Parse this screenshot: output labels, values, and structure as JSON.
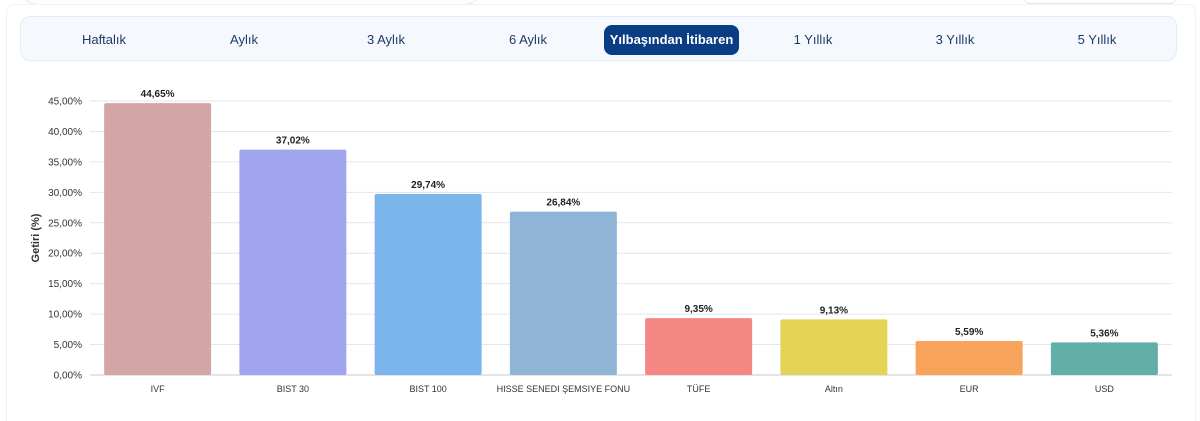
{
  "tabs": {
    "items": [
      {
        "label": "Haftalık"
      },
      {
        "label": "Aylık"
      },
      {
        "label": "3 Aylık"
      },
      {
        "label": "6 Aylık"
      },
      {
        "label": "Yılbaşından İtibaren"
      },
      {
        "label": "1 Yıllık"
      },
      {
        "label": "3 Yıllık"
      },
      {
        "label": "5 Yıllık"
      }
    ],
    "active_index": 4
  },
  "colors": {
    "active_tab": "#0a3d83",
    "tab_text": "#1f3a68",
    "grid": "#e6e6e6"
  },
  "chart_data": {
    "type": "bar",
    "categories": [
      "IVF",
      "BIST 30",
      "BIST 100",
      "HISSE SENEDI ŞEMSIYE FONU",
      "TÜFE",
      "Altın",
      "EUR",
      "USD"
    ],
    "values": [
      44.65,
      37.02,
      29.74,
      26.84,
      9.35,
      9.13,
      5.59,
      5.36
    ],
    "data_labels": [
      "44,65%",
      "37,02%",
      "29,74%",
      "26,84%",
      "9,35%",
      "9,13%",
      "5,59%",
      "5,36%"
    ],
    "bar_colors": [
      "#d4a5a5",
      "#a0a5ee",
      "#7cb5ec",
      "#90b4d6",
      "#f48684",
      "#e4d354",
      "#f7a35c",
      "#62aea8"
    ],
    "ylabel": "Getiri (%)",
    "xlabel": "",
    "ylim": [
      0,
      45
    ],
    "yticks": [
      0,
      5,
      10,
      15,
      20,
      25,
      30,
      35,
      40,
      45
    ],
    "ytick_labels": [
      "0,00%",
      "5,00%",
      "10,00%",
      "15,00%",
      "20,00%",
      "25,00%",
      "30,00%",
      "35,00%",
      "40,00%",
      "45,00%"
    ],
    "grid": true,
    "legend": "none"
  }
}
